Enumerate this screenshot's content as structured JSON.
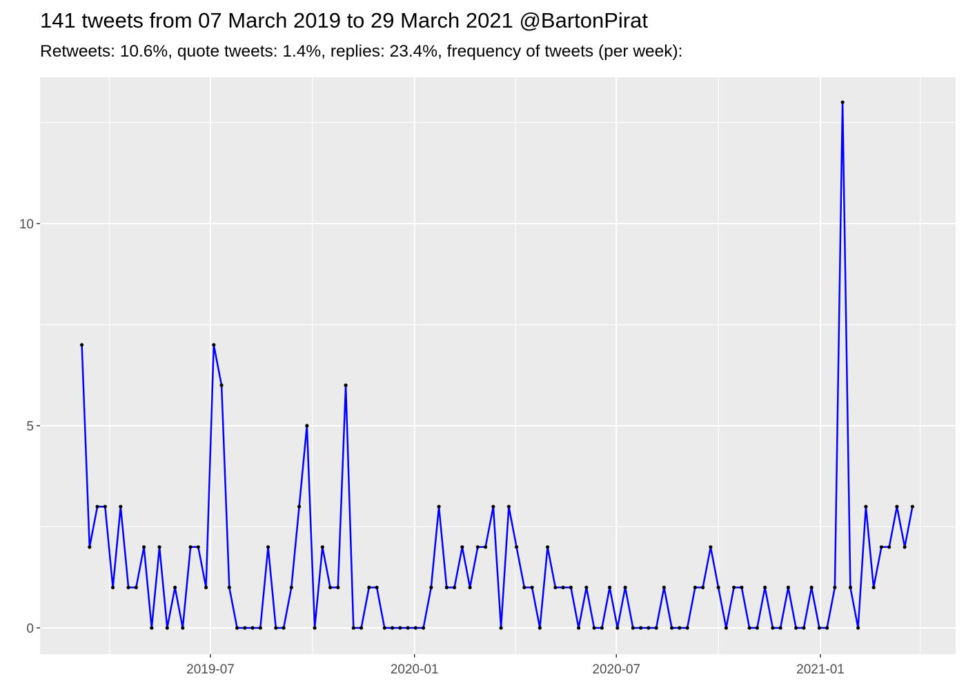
{
  "chart_data": {
    "type": "line",
    "title": "141 tweets from 07 March 2019 to 29 March 2021 @BartonPirat",
    "subtitle": "Retweets: 10.6%, quote tweets: 1.4%, replies: 23.4%, frequency of tweets (per week):",
    "xlabel": "",
    "ylabel": "",
    "ylim": [
      -0.4,
      13.6
    ],
    "xlim": [
      "2019-02-10",
      "2021-04-20"
    ],
    "grid": true,
    "y_ticks": [
      0,
      5,
      10
    ],
    "y_tick_labels": [
      "0",
      "5",
      "10"
    ],
    "x_ticks": [
      "2019-07-01",
      "2020-01-01",
      "2020-07-01",
      "2021-01-01"
    ],
    "x_tick_labels": [
      "2019-07",
      "2020-01",
      "2020-07",
      "2021-01"
    ],
    "colors": {
      "line": "#0000ff",
      "points": "#000000",
      "panel": "#ebebeb",
      "grid": "#ffffff"
    },
    "x": [
      "2019-03-07",
      "2019-03-14",
      "2019-03-21",
      "2019-03-28",
      "2019-04-04",
      "2019-04-11",
      "2019-04-18",
      "2019-04-25",
      "2019-05-02",
      "2019-05-09",
      "2019-05-16",
      "2019-05-23",
      "2019-05-30",
      "2019-06-06",
      "2019-06-13",
      "2019-06-20",
      "2019-06-27",
      "2019-07-04",
      "2019-07-11",
      "2019-07-18",
      "2019-07-25",
      "2019-08-01",
      "2019-08-08",
      "2019-08-15",
      "2019-08-22",
      "2019-08-29",
      "2019-09-05",
      "2019-09-12",
      "2019-09-19",
      "2019-09-26",
      "2019-10-03",
      "2019-10-10",
      "2019-10-17",
      "2019-10-24",
      "2019-10-31",
      "2019-11-07",
      "2019-11-14",
      "2019-11-21",
      "2019-11-28",
      "2019-12-05",
      "2019-12-12",
      "2019-12-19",
      "2019-12-26",
      "2020-01-02",
      "2020-01-09",
      "2020-01-16",
      "2020-01-23",
      "2020-01-30",
      "2020-02-06",
      "2020-02-13",
      "2020-02-20",
      "2020-02-27",
      "2020-03-05",
      "2020-03-12",
      "2020-03-19",
      "2020-03-26",
      "2020-04-02",
      "2020-04-09",
      "2020-04-16",
      "2020-04-23",
      "2020-04-30",
      "2020-05-07",
      "2020-05-14",
      "2020-05-21",
      "2020-05-28",
      "2020-06-04",
      "2020-06-11",
      "2020-06-18",
      "2020-06-25",
      "2020-07-02",
      "2020-07-09",
      "2020-07-16",
      "2020-07-23",
      "2020-07-30",
      "2020-08-06",
      "2020-08-13",
      "2020-08-20",
      "2020-08-27",
      "2020-09-03",
      "2020-09-10",
      "2020-09-17",
      "2020-09-24",
      "2020-10-01",
      "2020-10-08",
      "2020-10-15",
      "2020-10-22",
      "2020-10-29",
      "2020-11-05",
      "2020-11-12",
      "2020-11-19",
      "2020-11-26",
      "2020-12-03",
      "2020-12-10",
      "2020-12-17",
      "2020-12-24",
      "2020-12-31",
      "2021-01-07",
      "2021-01-14",
      "2021-01-21",
      "2021-01-28",
      "2021-02-04",
      "2021-02-11",
      "2021-02-18",
      "2021-02-25",
      "2021-03-04",
      "2021-03-11",
      "2021-03-18",
      "2021-03-25"
    ],
    "values": [
      7,
      2,
      3,
      3,
      1,
      3,
      1,
      1,
      2,
      0,
      2,
      0,
      1,
      0,
      2,
      2,
      1,
      7,
      6,
      1,
      0,
      0,
      0,
      0,
      2,
      0,
      0,
      1,
      3,
      5,
      0,
      2,
      1,
      1,
      6,
      0,
      0,
      1,
      1,
      0,
      0,
      0,
      0,
      0,
      0,
      1,
      3,
      1,
      1,
      2,
      1,
      2,
      2,
      3,
      0,
      3,
      2,
      1,
      1,
      0,
      2,
      1,
      1,
      1,
      0,
      1,
      0,
      0,
      1,
      0,
      1,
      0,
      0,
      0,
      0,
      1,
      0,
      0,
      0,
      1,
      1,
      2,
      1,
      0,
      1,
      1,
      0,
      0,
      1,
      0,
      0,
      1,
      0,
      0,
      1,
      0,
      0,
      1,
      13,
      1,
      0,
      3,
      1,
      2,
      2,
      3,
      2,
      3
    ]
  }
}
